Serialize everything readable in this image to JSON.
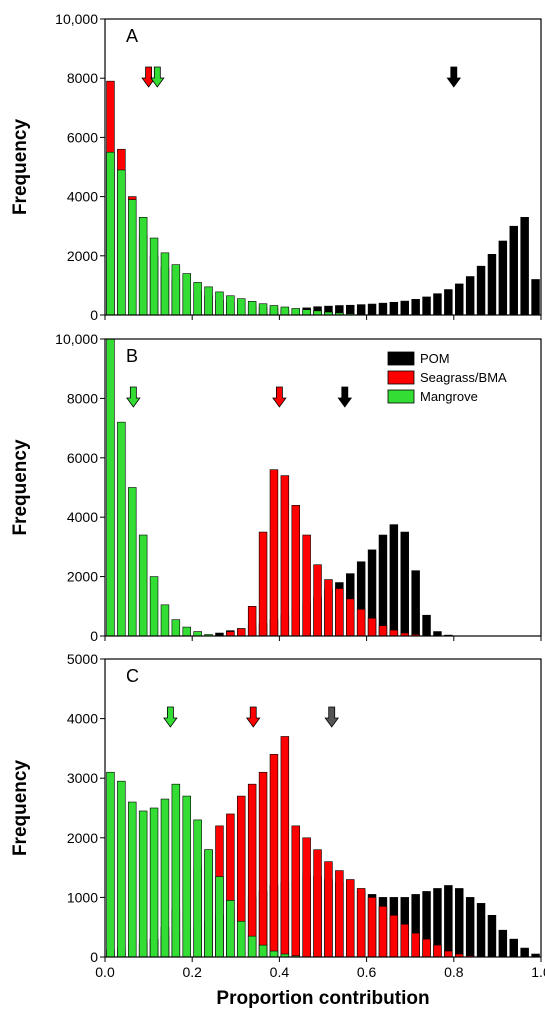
{
  "xlabel": "Proportion contribution",
  "ylabel": "Frequency",
  "legend": [
    {
      "name": "POM",
      "color": "#000000"
    },
    {
      "name": "Seagrass/BMA",
      "color": "#ff0000"
    },
    {
      "name": "Mangrove",
      "color": "#33dd33"
    }
  ],
  "arrow_colors": {
    "POM_A": "#000000",
    "POM_B": "#000000",
    "POM_C": "#555555",
    "Seagrass/BMA": "#ff0000",
    "Mangrove": "#33dd33"
  },
  "chart_data": [
    {
      "type": "bar",
      "panel": "A",
      "xlim": [
        0,
        1
      ],
      "ylim": [
        0,
        10000
      ],
      "xticks": [
        "0.0",
        "0.2",
        "0.4",
        "0.6",
        "0.8",
        "1.0"
      ],
      "yticks": [
        "0",
        "2000",
        "4000",
        "6000",
        "8000",
        "10,000"
      ],
      "bin_centers": [
        0.0125,
        0.0375,
        0.0625,
        0.0875,
        0.1125,
        0.1375,
        0.1625,
        0.1875,
        0.2125,
        0.2375,
        0.2625,
        0.2875,
        0.3125,
        0.3375,
        0.3625,
        0.3875,
        0.4125,
        0.4375,
        0.4625,
        0.4875,
        0.5125,
        0.5375,
        0.5625,
        0.5875,
        0.6125,
        0.6375,
        0.6625,
        0.6875,
        0.7125,
        0.7375,
        0.7625,
        0.7875,
        0.8125,
        0.8375,
        0.8625,
        0.8875,
        0.9125,
        0.9375,
        0.9625,
        0.9875
      ],
      "series": [
        {
          "name": "POM",
          "values": [
            0,
            0,
            0,
            0,
            0,
            0,
            0,
            0,
            0,
            0,
            0,
            0,
            0,
            20,
            50,
            100,
            150,
            200,
            240,
            280,
            300,
            320,
            330,
            350,
            370,
            400,
            430,
            470,
            530,
            610,
            720,
            860,
            1050,
            1300,
            1650,
            2050,
            2500,
            3000,
            3300,
            1200
          ]
        },
        {
          "name": "Seagrass/BMA",
          "values": [
            7900,
            5600,
            4000,
            2700,
            2000,
            1600,
            1200,
            1000,
            800,
            650,
            500,
            420,
            350,
            300,
            260,
            230,
            200,
            180,
            150,
            120,
            90,
            70,
            50,
            30,
            20,
            10,
            5,
            0,
            0,
            0,
            0,
            0,
            0,
            0,
            0,
            0,
            0,
            0,
            0,
            0
          ]
        },
        {
          "name": "Mangrove",
          "values": [
            5500,
            4900,
            3900,
            3300,
            2600,
            2100,
            1700,
            1400,
            1100,
            950,
            780,
            650,
            550,
            460,
            380,
            320,
            270,
            220,
            180,
            140,
            100,
            70,
            40,
            20,
            10,
            5,
            0,
            0,
            0,
            0,
            0,
            0,
            0,
            0,
            0,
            0,
            0,
            0,
            0,
            0
          ]
        }
      ],
      "arrows": [
        {
          "series": "POM",
          "x": 0.8,
          "color_key": "POM_A"
        },
        {
          "series": "Seagrass/BMA",
          "x": 0.1,
          "color_key": "Seagrass/BMA"
        },
        {
          "series": "Mangrove",
          "x": 0.12,
          "color_key": "Mangrove"
        }
      ]
    },
    {
      "type": "bar",
      "panel": "B",
      "xlim": [
        0,
        1
      ],
      "ylim": [
        0,
        10000
      ],
      "xticks": [
        "0.0",
        "0.2",
        "0.4",
        "0.6",
        "0.8",
        "1.0"
      ],
      "yticks": [
        "0",
        "2000",
        "4000",
        "6000",
        "8000",
        "10,000"
      ],
      "bin_centers": [
        0.0125,
        0.0375,
        0.0625,
        0.0875,
        0.1125,
        0.1375,
        0.1625,
        0.1875,
        0.2125,
        0.2375,
        0.2625,
        0.2875,
        0.3125,
        0.3375,
        0.3625,
        0.3875,
        0.4125,
        0.4375,
        0.4625,
        0.4875,
        0.5125,
        0.5375,
        0.5625,
        0.5875,
        0.6125,
        0.6375,
        0.6625,
        0.6875,
        0.7125,
        0.7375,
        0.7625,
        0.7875,
        0.8125,
        0.8375,
        0.8625,
        0.8875,
        0.9125,
        0.9375,
        0.9625,
        0.9875
      ],
      "series": [
        {
          "name": "POM",
          "values": [
            0,
            0,
            0,
            0,
            0,
            0,
            0,
            0,
            0,
            0,
            100,
            180,
            250,
            350,
            420,
            550,
            700,
            900,
            1100,
            1300,
            1550,
            1800,
            2100,
            2500,
            2900,
            3400,
            3750,
            3500,
            2200,
            700,
            150,
            30,
            0,
            0,
            0,
            0,
            0,
            0,
            0,
            0
          ]
        },
        {
          "name": "Seagrass/BMA",
          "values": [
            0,
            0,
            0,
            0,
            0,
            0,
            0,
            0,
            0,
            0,
            0,
            150,
            250,
            1000,
            3500,
            5600,
            5400,
            4400,
            3400,
            2400,
            1900,
            1600,
            1250,
            900,
            600,
            350,
            200,
            100,
            50,
            10,
            0,
            0,
            0,
            0,
            0,
            0,
            0,
            0,
            0,
            0
          ]
        },
        {
          "name": "Mangrove",
          "values": [
            10100,
            7200,
            5000,
            3400,
            2000,
            1050,
            550,
            300,
            150,
            50,
            20,
            0,
            0,
            0,
            0,
            0,
            0,
            0,
            0,
            0,
            0,
            0,
            0,
            0,
            0,
            0,
            0,
            0,
            0,
            0,
            0,
            0,
            0,
            0,
            0,
            0,
            0,
            0,
            0,
            0
          ]
        }
      ],
      "arrows": [
        {
          "series": "POM",
          "x": 0.55,
          "color_key": "POM_B"
        },
        {
          "series": "Seagrass/BMA",
          "x": 0.4,
          "color_key": "Seagrass/BMA"
        },
        {
          "series": "Mangrove",
          "x": 0.065,
          "color_key": "Mangrove"
        }
      ]
    },
    {
      "type": "bar",
      "panel": "C",
      "xlim": [
        0,
        1
      ],
      "ylim": [
        0,
        5000
      ],
      "xticks": [
        "0.0",
        "0.2",
        "0.4",
        "0.6",
        "0.8",
        "1.0"
      ],
      "yticks": [
        "0",
        "1000",
        "2000",
        "3000",
        "4000",
        "5000"
      ],
      "bin_centers": [
        0.0125,
        0.0375,
        0.0625,
        0.0875,
        0.1125,
        0.1375,
        0.1625,
        0.1875,
        0.2125,
        0.2375,
        0.2625,
        0.2875,
        0.3125,
        0.3375,
        0.3625,
        0.3875,
        0.4125,
        0.4375,
        0.4625,
        0.4875,
        0.5125,
        0.5375,
        0.5625,
        0.5875,
        0.6125,
        0.6375,
        0.6625,
        0.6875,
        0.7125,
        0.7375,
        0.7625,
        0.7875,
        0.8125,
        0.8375,
        0.8625,
        0.8875,
        0.9125,
        0.9375,
        0.9625,
        0.9875
      ],
      "series": [
        {
          "name": "POM",
          "values": [
            120,
            160,
            200,
            250,
            300,
            350,
            400,
            450,
            500,
            600,
            700,
            800,
            900,
            1000,
            1100,
            1200,
            1250,
            1300,
            1350,
            1350,
            1300,
            1250,
            1150,
            1100,
            1050,
            1000,
            1000,
            1000,
            1050,
            1100,
            1150,
            1200,
            1150,
            1000,
            900,
            700,
            450,
            300,
            150,
            50
          ]
        },
        {
          "name": "Seagrass/BMA",
          "values": [
            0,
            100,
            150,
            200,
            300,
            500,
            800,
            1100,
            1500,
            1800,
            2200,
            2400,
            2700,
            2900,
            3100,
            3400,
            3700,
            2200,
            2000,
            1800,
            1600,
            1450,
            1300,
            1150,
            1000,
            850,
            700,
            550,
            400,
            300,
            200,
            100,
            50,
            20,
            0,
            0,
            0,
            0,
            0,
            0
          ]
        },
        {
          "name": "Mangrove",
          "values": [
            3100,
            2950,
            2600,
            2450,
            2500,
            2650,
            2900,
            2700,
            2300,
            1800,
            1350,
            950,
            600,
            350,
            200,
            100,
            50,
            20,
            0,
            0,
            0,
            0,
            0,
            0,
            0,
            0,
            0,
            0,
            0,
            0,
            0,
            0,
            0,
            0,
            0,
            0,
            0,
            0,
            0,
            0
          ]
        }
      ],
      "arrows": [
        {
          "series": "POM",
          "x": 0.52,
          "color_key": "POM_C"
        },
        {
          "series": "Seagrass/BMA",
          "x": 0.34,
          "color_key": "Seagrass/BMA"
        },
        {
          "series": "Mangrove",
          "x": 0.15,
          "color_key": "Mangrove"
        }
      ]
    }
  ]
}
